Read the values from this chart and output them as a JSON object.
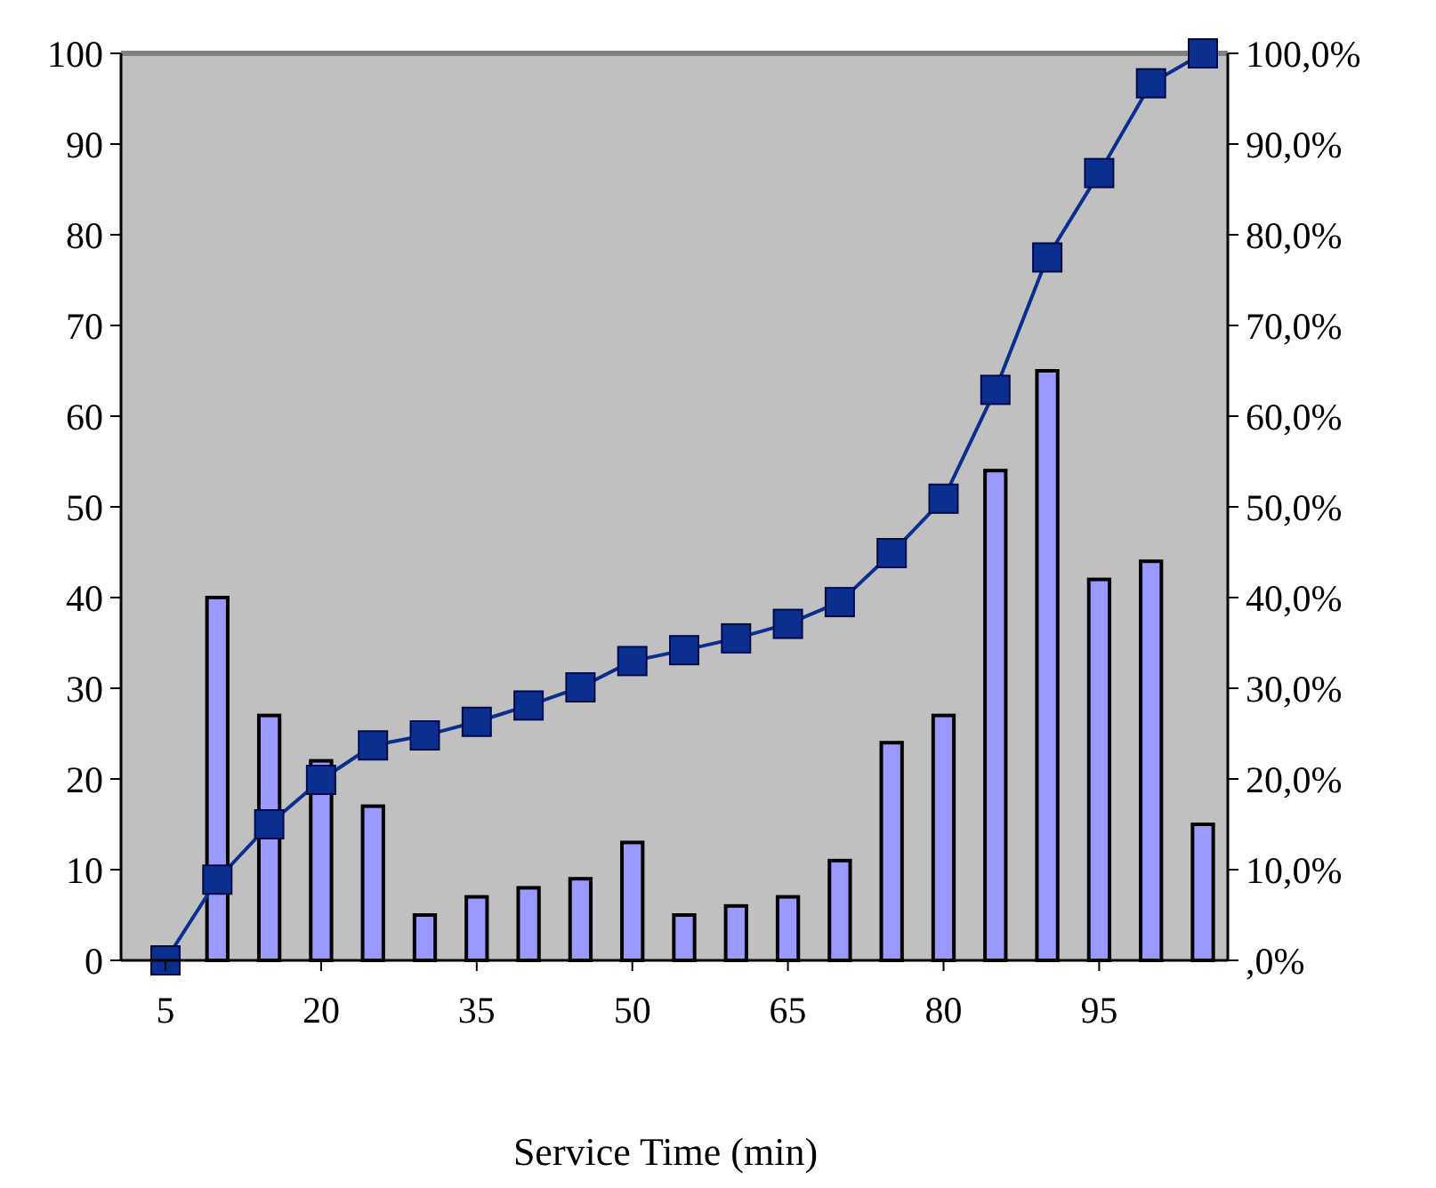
{
  "chart_data": {
    "type": "bar",
    "xlabel": "Service Time (min)",
    "categories": [
      "5",
      null,
      null,
      "20",
      null,
      null,
      "35",
      null,
      null,
      "50",
      null,
      null,
      "65",
      null,
      null,
      "80",
      null,
      null,
      "95",
      null,
      null
    ],
    "series": [
      {
        "color": "#9999ff",
        "values": [
          0,
          40,
          27,
          22,
          17,
          5,
          7,
          8,
          9,
          13,
          5,
          6,
          7,
          11,
          24,
          27,
          54,
          65,
          42,
          44,
          15
        ]
      },
      {
        "type": "line",
        "axis": "y2",
        "color": "#0a2f8f",
        "marker": "square",
        "values": [
          0,
          8.9,
          15.0,
          19.9,
          23.7,
          24.8,
          26.3,
          28.1,
          30.1,
          33.0,
          34.2,
          35.5,
          37.1,
          39.5,
          44.9,
          50.9,
          62.9,
          77.5,
          86.8,
          96.7,
          100
        ]
      }
    ],
    "ylim": [
      0,
      100
    ],
    "yticks": [
      0,
      10,
      20,
      30,
      40,
      50,
      60,
      70,
      80,
      90,
      100
    ],
    "y2lim": [
      0,
      100
    ],
    "y2ticks": [
      {
        "value": 0,
        "label": ",0%"
      },
      {
        "value": 10,
        "label": "10,0%"
      },
      {
        "value": 20,
        "label": "20,0%"
      },
      {
        "value": 30,
        "label": "30,0%"
      },
      {
        "value": 40,
        "label": "40,0%"
      },
      {
        "value": 50,
        "label": "50,0%"
      },
      {
        "value": 60,
        "label": "60,0%"
      },
      {
        "value": 70,
        "label": "70,0%"
      },
      {
        "value": 80,
        "label": "80,0%"
      },
      {
        "value": 90,
        "label": "90,0%"
      },
      {
        "value": 100,
        "label": "100,0%"
      }
    ],
    "grid": false
  }
}
